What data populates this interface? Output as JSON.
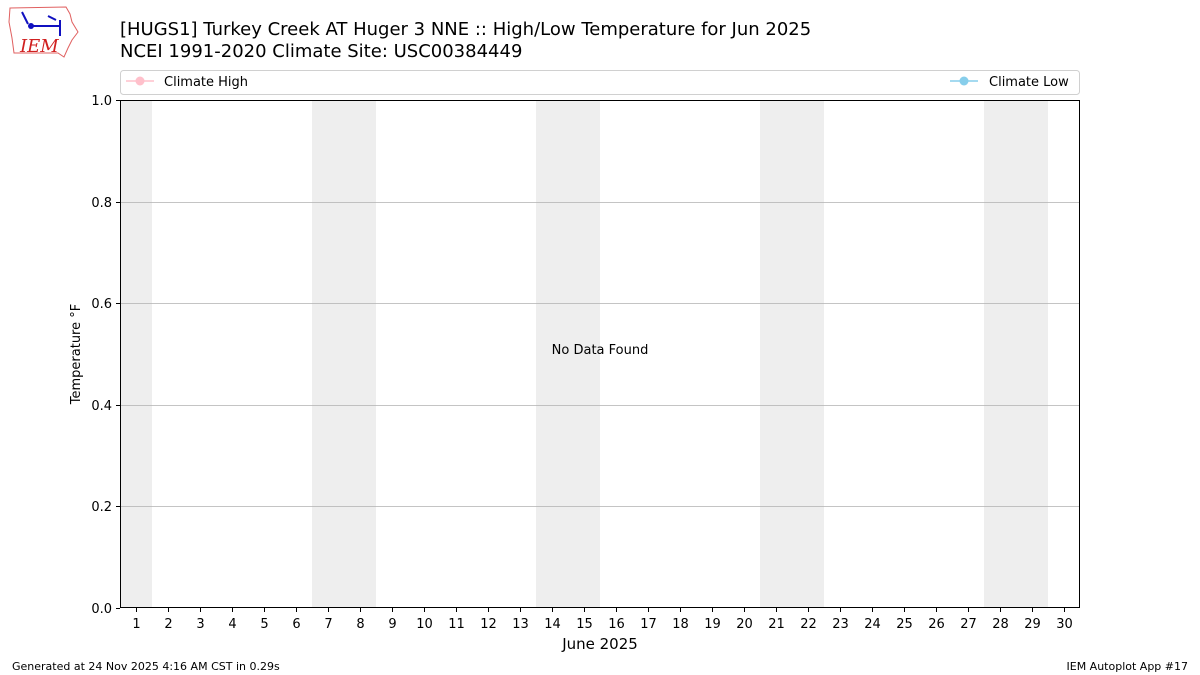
{
  "logo": {
    "text": "IEM"
  },
  "title_line1": "[HUGS1] Turkey Creek  AT Huger 3 NNE :: High/Low Temperature for Jun 2025",
  "title_line2": "NCEI 1991-2020 Climate Site: USC00384449",
  "footer_left": "Generated at 24 Nov 2025 4:16 AM CST in 0.29s",
  "footer_right": "IEM Autoplot App #17",
  "chart_data": {
    "type": "line",
    "title": "[HUGS1] Turkey Creek  AT Huger 3 NNE :: High/Low Temperature for Jun 2025",
    "subtitle": "NCEI 1991-2020 Climate Site: USC00384449",
    "xlabel": "June 2025",
    "ylabel": "Temperature °F",
    "xlim": [
      0.5,
      30.5
    ],
    "ylim": [
      0,
      1
    ],
    "x_ticks": [
      "1",
      "2",
      "3",
      "4",
      "5",
      "6",
      "7",
      "8",
      "9",
      "10",
      "11",
      "12",
      "13",
      "14",
      "15",
      "16",
      "17",
      "18",
      "19",
      "20",
      "21",
      "22",
      "23",
      "24",
      "25",
      "26",
      "27",
      "28",
      "29",
      "30"
    ],
    "y_ticks": [
      "0.0",
      "0.2",
      "0.4",
      "0.6",
      "0.8",
      "1.0"
    ],
    "grid": "y",
    "weekend_bands": [
      [
        1,
        1
      ],
      [
        7,
        8
      ],
      [
        14,
        15
      ],
      [
        21,
        22
      ],
      [
        28,
        29
      ]
    ],
    "annotation": "No Data Found",
    "legend_placement": "top",
    "series": [
      {
        "name": "Climate High",
        "color": "#ffc0cb",
        "values": []
      },
      {
        "name": "Climate Low",
        "color": "#87ceeb",
        "values": []
      }
    ],
    "band_color": "#eeeeee",
    "grid_color": "#b0b0b0"
  }
}
